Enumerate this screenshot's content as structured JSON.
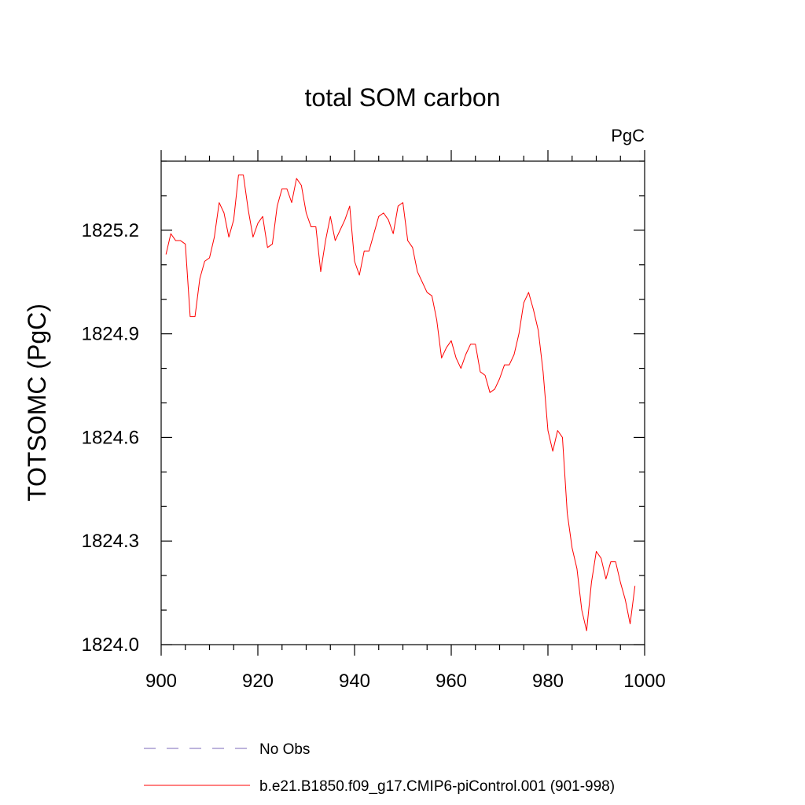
{
  "chart_data": {
    "type": "line",
    "title": "total SOM carbon",
    "units_label": "PgC",
    "xlabel": "",
    "ylabel": "TOTSOMC  (PgC)",
    "xlim": [
      900,
      1000
    ],
    "ylim": [
      1824.0,
      1825.4
    ],
    "xticks": [
      900,
      920,
      940,
      960,
      980,
      1000
    ],
    "yticks": [
      1824.0,
      1824.3,
      1824.6,
      1824.9,
      1825.2
    ],
    "ytick_labels": [
      "1824.0",
      "1824.3",
      "1824.6",
      "1824.9",
      "1825.2"
    ],
    "legend": [
      {
        "label": "No Obs",
        "color": "#7b68b8",
        "style": "dashed"
      },
      {
        "label": "b.e21.B1850.f09_g17.CMIP6-piControl.001 (901-998)",
        "color": "#ff0000",
        "style": "solid"
      }
    ],
    "series": [
      {
        "name": "b.e21.B1850.f09_g17.CMIP6-piControl.001 (901-998)",
        "color": "#ff0000",
        "x": [
          901,
          902,
          903,
          904,
          905,
          906,
          907,
          908,
          909,
          910,
          911,
          912,
          913,
          914,
          915,
          916,
          917,
          918,
          919,
          920,
          921,
          922,
          923,
          924,
          925,
          926,
          927,
          928,
          929,
          930,
          931,
          932,
          933,
          934,
          935,
          936,
          937,
          938,
          939,
          940,
          941,
          942,
          943,
          944,
          945,
          946,
          947,
          948,
          949,
          950,
          951,
          952,
          953,
          954,
          955,
          956,
          957,
          958,
          959,
          960,
          961,
          962,
          963,
          964,
          965,
          966,
          967,
          968,
          969,
          970,
          971,
          972,
          973,
          974,
          975,
          976,
          977,
          978,
          979,
          980,
          981,
          982,
          983,
          984,
          985,
          986,
          987,
          988,
          989,
          990,
          991,
          992,
          993,
          994,
          995,
          996,
          997,
          998
        ],
        "values": [
          1825.13,
          1825.19,
          1825.17,
          1825.17,
          1825.16,
          1824.95,
          1824.95,
          1825.06,
          1825.11,
          1825.12,
          1825.18,
          1825.28,
          1825.25,
          1825.18,
          1825.23,
          1825.36,
          1825.36,
          1825.26,
          1825.18,
          1825.22,
          1825.24,
          1825.15,
          1825.16,
          1825.27,
          1825.32,
          1825.32,
          1825.28,
          1825.35,
          1825.33,
          1825.25,
          1825.21,
          1825.21,
          1825.08,
          1825.17,
          1825.24,
          1825.17,
          1825.2,
          1825.23,
          1825.27,
          1825.11,
          1825.07,
          1825.14,
          1825.14,
          1825.19,
          1825.24,
          1825.25,
          1825.23,
          1825.19,
          1825.27,
          1825.28,
          1825.17,
          1825.15,
          1825.08,
          1825.05,
          1825.02,
          1825.01,
          1824.94,
          1824.83,
          1824.86,
          1824.88,
          1824.83,
          1824.8,
          1824.84,
          1824.87,
          1824.87,
          1824.79,
          1824.78,
          1824.73,
          1824.74,
          1824.77,
          1824.81,
          1824.81,
          1824.84,
          1824.9,
          1824.99,
          1825.02,
          1824.97,
          1824.91,
          1824.79,
          1824.62,
          1824.56,
          1824.62,
          1824.6,
          1824.38,
          1824.28,
          1824.22,
          1824.1,
          1824.04,
          1824.18,
          1824.27,
          1824.25,
          1824.19,
          1824.24,
          1824.24,
          1824.18,
          1824.13,
          1824.06,
          1824.17
        ]
      }
    ]
  }
}
